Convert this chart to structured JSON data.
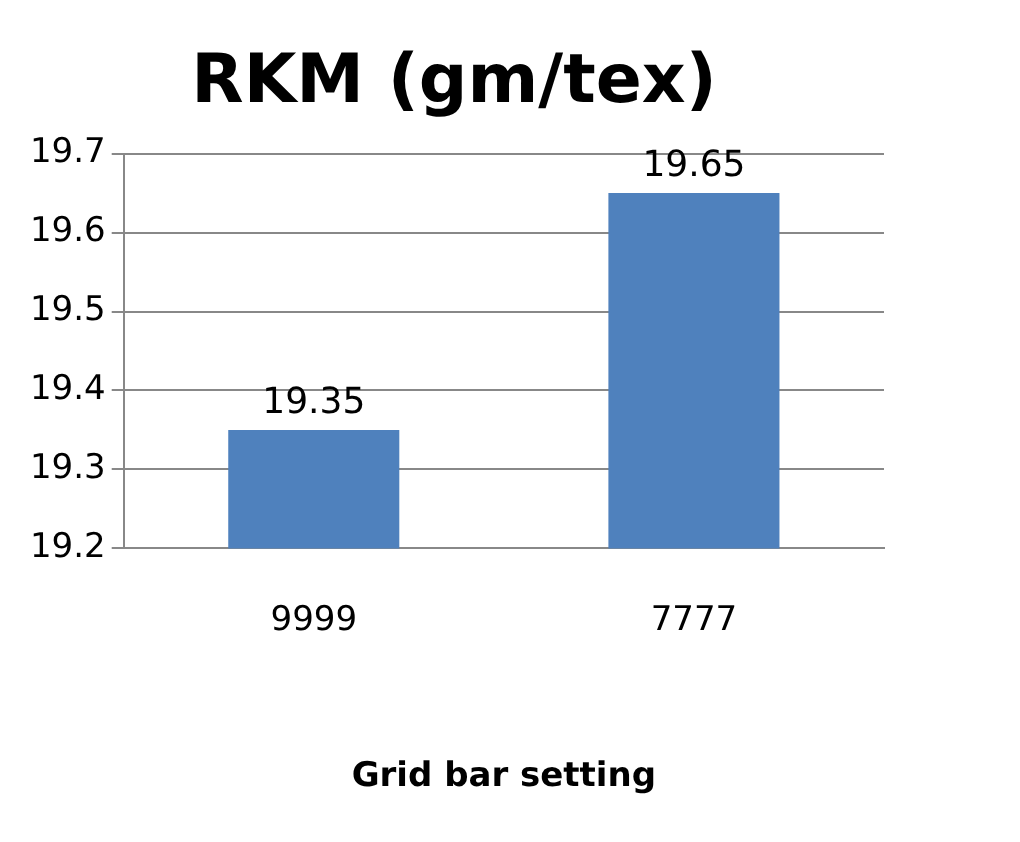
{
  "chart_data": {
    "type": "bar",
    "title": "RKM (gm/tex)",
    "xlabel": "Grid bar setting",
    "categories": [
      "9999",
      "7777"
    ],
    "values": [
      19.35,
      19.65
    ],
    "color": "#4f81bd",
    "ylim": [
      19.2,
      19.7
    ],
    "yticks": [
      19.2,
      19.3,
      19.4,
      19.5,
      19.6,
      19.7
    ],
    "grid": "y",
    "data_labels": true,
    "legend": false
  }
}
